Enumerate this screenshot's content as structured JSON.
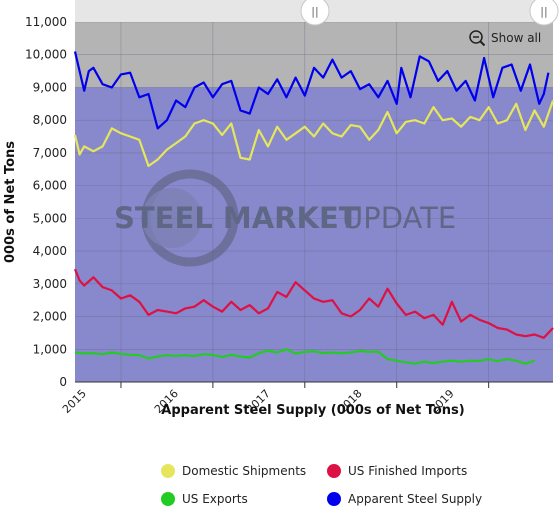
{
  "chart_data": {
    "type": "line",
    "title": "",
    "xlabel": "Apparent Steel Supply (000s of Net Tons)",
    "ylabel": "000s of Net Tons",
    "ylim": [
      0,
      11000
    ],
    "yticks": [
      "0",
      "1,000",
      "2,000",
      "3,000",
      "4,000",
      "5,000",
      "6,000",
      "7,000",
      "8,000",
      "9,000",
      "10,000",
      "11,000"
    ],
    "xlim": [
      2014.5,
      2019.7
    ],
    "xticks": [
      "2015",
      "2016",
      "2017",
      "2018",
      "2019"
    ],
    "grid": true,
    "legend_position": "bottom",
    "series": [
      {
        "name": "Apparent Steel Supply",
        "color": "#0000ee",
        "points": [
          [
            2014.5,
            10100
          ],
          [
            2014.55,
            9500
          ],
          [
            2014.6,
            8900
          ],
          [
            2014.65,
            9500
          ],
          [
            2014.7,
            9600
          ],
          [
            2014.8,
            9100
          ],
          [
            2014.9,
            9000
          ],
          [
            2015.0,
            9400
          ],
          [
            2015.1,
            9450
          ],
          [
            2015.2,
            8700
          ],
          [
            2015.3,
            8800
          ],
          [
            2015.4,
            7750
          ],
          [
            2015.5,
            8000
          ],
          [
            2015.6,
            8600
          ],
          [
            2015.7,
            8400
          ],
          [
            2015.8,
            9000
          ],
          [
            2015.9,
            9150
          ],
          [
            2016.0,
            8700
          ],
          [
            2016.1,
            9100
          ],
          [
            2016.2,
            9200
          ],
          [
            2016.3,
            8300
          ],
          [
            2016.4,
            8200
          ],
          [
            2016.5,
            9000
          ],
          [
            2016.6,
            8800
          ],
          [
            2016.7,
            9250
          ],
          [
            2016.8,
            8700
          ],
          [
            2016.9,
            9300
          ],
          [
            2017.0,
            8750
          ],
          [
            2017.1,
            9600
          ],
          [
            2017.2,
            9300
          ],
          [
            2017.3,
            9850
          ],
          [
            2017.4,
            9300
          ],
          [
            2017.5,
            9500
          ],
          [
            2017.6,
            8950
          ],
          [
            2017.7,
            9100
          ],
          [
            2017.8,
            8700
          ],
          [
            2017.9,
            9200
          ],
          [
            2018.0,
            8500
          ],
          [
            2018.05,
            9600
          ],
          [
            2018.15,
            8700
          ],
          [
            2018.25,
            9950
          ],
          [
            2018.35,
            9800
          ],
          [
            2018.45,
            9200
          ],
          [
            2018.55,
            9500
          ],
          [
            2018.65,
            8900
          ],
          [
            2018.75,
            9200
          ],
          [
            2018.85,
            8600
          ],
          [
            2018.95,
            9900
          ],
          [
            2019.05,
            8700
          ],
          [
            2019.15,
            9600
          ],
          [
            2019.25,
            9700
          ],
          [
            2019.35,
            8900
          ],
          [
            2019.45,
            9700
          ],
          [
            2019.55,
            8500
          ],
          [
            2019.6,
            8800
          ],
          [
            2019.65,
            9450
          ]
        ]
      },
      {
        "name": "Domestic Shipments",
        "color": "#e6e65c",
        "points": [
          [
            2014.5,
            7550
          ],
          [
            2014.55,
            6950
          ],
          [
            2014.6,
            7200
          ],
          [
            2014.7,
            7050
          ],
          [
            2014.8,
            7200
          ],
          [
            2014.9,
            7750
          ],
          [
            2015.0,
            7600
          ],
          [
            2015.1,
            7500
          ],
          [
            2015.2,
            7400
          ],
          [
            2015.3,
            6600
          ],
          [
            2015.4,
            6800
          ],
          [
            2015.5,
            7100
          ],
          [
            2015.6,
            7300
          ],
          [
            2015.7,
            7500
          ],
          [
            2015.8,
            7900
          ],
          [
            2015.9,
            8000
          ],
          [
            2016.0,
            7900
          ],
          [
            2016.1,
            7550
          ],
          [
            2016.2,
            7900
          ],
          [
            2016.3,
            6850
          ],
          [
            2016.4,
            6800
          ],
          [
            2016.5,
            7700
          ],
          [
            2016.6,
            7200
          ],
          [
            2016.7,
            7800
          ],
          [
            2016.8,
            7400
          ],
          [
            2016.9,
            7600
          ],
          [
            2017.0,
            7800
          ],
          [
            2017.1,
            7500
          ],
          [
            2017.2,
            7900
          ],
          [
            2017.3,
            7600
          ],
          [
            2017.4,
            7500
          ],
          [
            2017.5,
            7850
          ],
          [
            2017.6,
            7800
          ],
          [
            2017.7,
            7400
          ],
          [
            2017.8,
            7700
          ],
          [
            2017.9,
            8250
          ],
          [
            2018.0,
            7600
          ],
          [
            2018.1,
            7950
          ],
          [
            2018.2,
            8000
          ],
          [
            2018.3,
            7900
          ],
          [
            2018.4,
            8400
          ],
          [
            2018.5,
            8000
          ],
          [
            2018.6,
            8050
          ],
          [
            2018.7,
            7800
          ],
          [
            2018.8,
            8100
          ],
          [
            2018.9,
            8000
          ],
          [
            2019.0,
            8400
          ],
          [
            2019.1,
            7900
          ],
          [
            2019.2,
            8000
          ],
          [
            2019.3,
            8500
          ],
          [
            2019.4,
            7700
          ],
          [
            2019.5,
            8300
          ],
          [
            2019.6,
            7800
          ],
          [
            2019.7,
            8600
          ]
        ]
      },
      {
        "name": "US Finished Imports",
        "color": "#dd1144",
        "points": [
          [
            2014.5,
            3450
          ],
          [
            2014.55,
            3100
          ],
          [
            2014.6,
            2950
          ],
          [
            2014.7,
            3200
          ],
          [
            2014.8,
            2900
          ],
          [
            2014.9,
            2800
          ],
          [
            2015.0,
            2550
          ],
          [
            2015.1,
            2650
          ],
          [
            2015.2,
            2450
          ],
          [
            2015.3,
            2050
          ],
          [
            2015.4,
            2200
          ],
          [
            2015.5,
            2150
          ],
          [
            2015.6,
            2100
          ],
          [
            2015.7,
            2250
          ],
          [
            2015.8,
            2300
          ],
          [
            2015.9,
            2500
          ],
          [
            2016.0,
            2300
          ],
          [
            2016.1,
            2150
          ],
          [
            2016.2,
            2450
          ],
          [
            2016.3,
            2200
          ],
          [
            2016.4,
            2350
          ],
          [
            2016.5,
            2100
          ],
          [
            2016.6,
            2250
          ],
          [
            2016.7,
            2750
          ],
          [
            2016.8,
            2600
          ],
          [
            2016.9,
            3050
          ],
          [
            2017.0,
            2800
          ],
          [
            2017.1,
            2550
          ],
          [
            2017.2,
            2450
          ],
          [
            2017.3,
            2500
          ],
          [
            2017.4,
            2100
          ],
          [
            2017.5,
            2000
          ],
          [
            2017.6,
            2200
          ],
          [
            2017.7,
            2550
          ],
          [
            2017.8,
            2300
          ],
          [
            2017.9,
            2850
          ],
          [
            2018.0,
            2400
          ],
          [
            2018.1,
            2050
          ],
          [
            2018.2,
            2150
          ],
          [
            2018.3,
            1950
          ],
          [
            2018.4,
            2050
          ],
          [
            2018.5,
            1750
          ],
          [
            2018.6,
            2450
          ],
          [
            2018.7,
            1850
          ],
          [
            2018.8,
            2050
          ],
          [
            2018.9,
            1900
          ],
          [
            2019.0,
            1800
          ],
          [
            2019.1,
            1650
          ],
          [
            2019.2,
            1600
          ],
          [
            2019.3,
            1450
          ],
          [
            2019.4,
            1400
          ],
          [
            2019.5,
            1450
          ],
          [
            2019.6,
            1350
          ],
          [
            2019.7,
            1650
          ]
        ]
      },
      {
        "name": "US Exports",
        "color": "#22cc22",
        "points": [
          [
            2014.5,
            900
          ],
          [
            2014.6,
            870
          ],
          [
            2014.7,
            880
          ],
          [
            2014.8,
            850
          ],
          [
            2014.9,
            900
          ],
          [
            2015.0,
            860
          ],
          [
            2015.1,
            830
          ],
          [
            2015.2,
            820
          ],
          [
            2015.3,
            720
          ],
          [
            2015.4,
            780
          ],
          [
            2015.5,
            820
          ],
          [
            2015.6,
            800
          ],
          [
            2015.7,
            820
          ],
          [
            2015.8,
            790
          ],
          [
            2015.9,
            850
          ],
          [
            2016.0,
            830
          ],
          [
            2016.1,
            760
          ],
          [
            2016.2,
            830
          ],
          [
            2016.3,
            780
          ],
          [
            2016.4,
            750
          ],
          [
            2016.5,
            880
          ],
          [
            2016.6,
            960
          ],
          [
            2016.7,
            900
          ],
          [
            2016.8,
            1000
          ],
          [
            2016.9,
            870
          ],
          [
            2017.0,
            920
          ],
          [
            2017.1,
            940
          ],
          [
            2017.2,
            880
          ],
          [
            2017.3,
            900
          ],
          [
            2017.4,
            880
          ],
          [
            2017.5,
            900
          ],
          [
            2017.6,
            950
          ],
          [
            2017.7,
            920
          ],
          [
            2017.8,
            930
          ],
          [
            2017.9,
            700
          ],
          [
            2018.0,
            650
          ],
          [
            2018.1,
            600
          ],
          [
            2018.2,
            560
          ],
          [
            2018.3,
            620
          ],
          [
            2018.4,
            580
          ],
          [
            2018.5,
            620
          ],
          [
            2018.6,
            650
          ],
          [
            2018.7,
            620
          ],
          [
            2018.8,
            650
          ],
          [
            2018.9,
            640
          ],
          [
            2019.0,
            700
          ],
          [
            2019.1,
            640
          ],
          [
            2019.2,
            700
          ],
          [
            2019.3,
            650
          ],
          [
            2019.4,
            560
          ],
          [
            2019.5,
            650
          ]
        ]
      }
    ],
    "legend": [
      {
        "label": "Domestic Shipments",
        "color": "#e6e65c"
      },
      {
        "label": "US Finished Imports",
        "color": "#dd1144"
      },
      {
        "label": "US Exports",
        "color": "#22cc22"
      },
      {
        "label": "Apparent Steel Supply",
        "color": "#0000ee"
      }
    ]
  },
  "watermark": {
    "part1": "STEEL MARKET",
    "part2": "UPDATE"
  },
  "controls": {
    "show_all_label": "Show all",
    "zoom_icon": "zoom-out-icon",
    "slider_handle_glyph": "||",
    "slider_range": [
      2014.5,
      2019.7
    ]
  },
  "colors": {
    "plot_bg": "#8888cc",
    "plot_bg_top": "#b4b4b4",
    "navigator_bg": "#e6e6e6",
    "grid": "#666688"
  }
}
